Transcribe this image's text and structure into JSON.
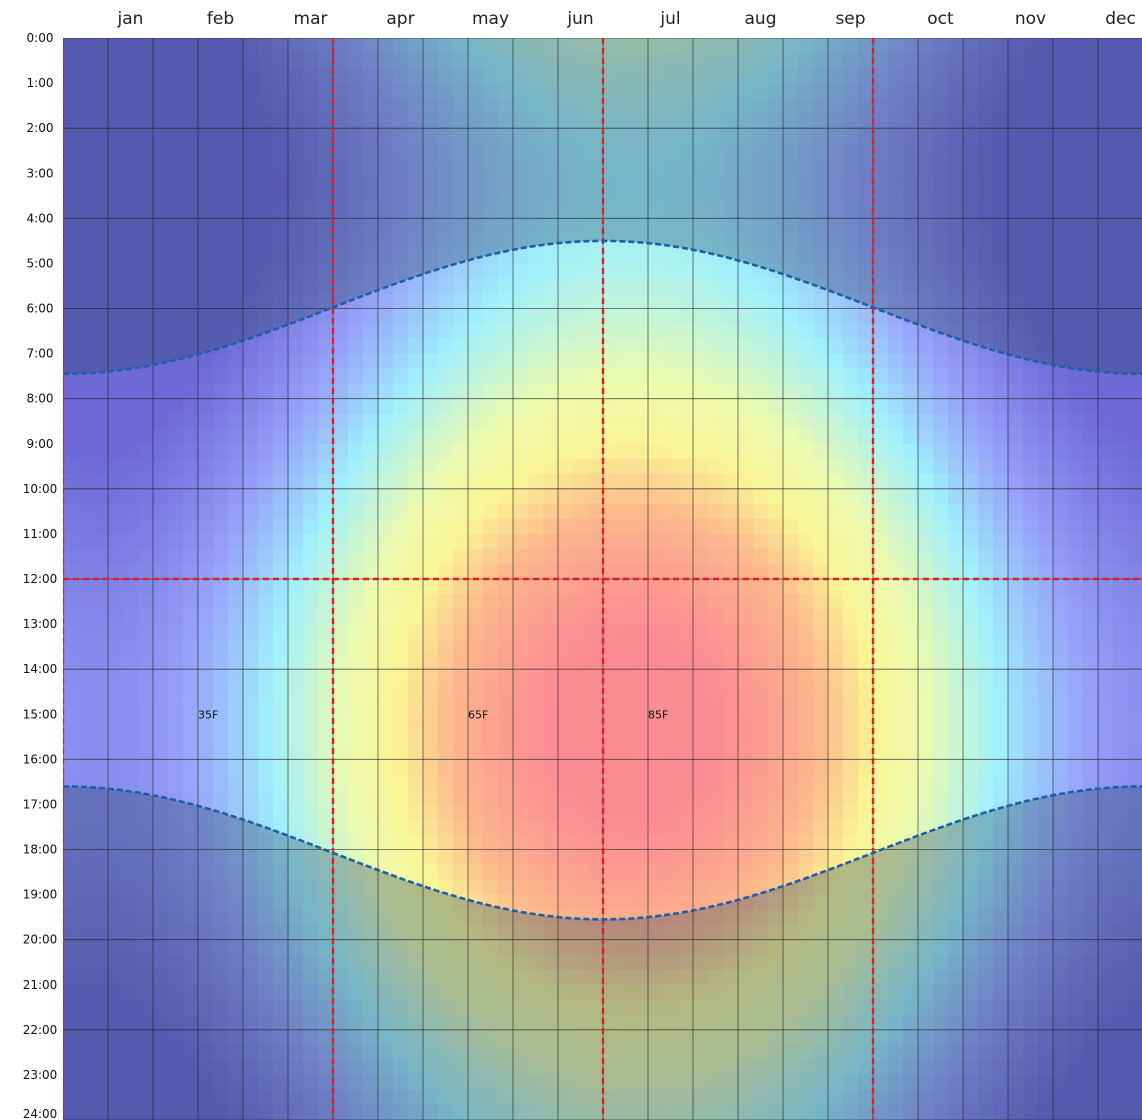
{
  "chart_data": {
    "type": "heatmap",
    "title": "",
    "xlabel": "",
    "ylabel": "",
    "x_tick_labels": [
      "jan",
      "feb",
      "mar",
      "apr",
      "may",
      "jun",
      "jul",
      "aug",
      "sep",
      "oct",
      "nov",
      "dec"
    ],
    "y_tick_labels": [
      "0:00",
      "1:00",
      "2:00",
      "3:00",
      "4:00",
      "5:00",
      "6:00",
      "7:00",
      "8:00",
      "9:00",
      "10:00",
      "11:00",
      "12:00",
      "13:00",
      "14:00",
      "15:00",
      "16:00",
      "17:00",
      "18:00",
      "19:00",
      "20:00",
      "21:00",
      "22:00",
      "23:00",
      "24:00"
    ],
    "xlim": [
      0,
      12
    ],
    "ylim": [
      0,
      24
    ],
    "grid": true,
    "temperature_annotations": [
      {
        "text": "35F",
        "month": 1.5,
        "hour": 15.0
      },
      {
        "text": "65F",
        "month": 4.5,
        "hour": 15.0
      },
      {
        "text": "85F",
        "month": 6.5,
        "hour": 15.0
      }
    ],
    "sunrise": {
      "min_hour": 4.5,
      "max_hour": 7.45,
      "min_at_month": 6.0
    },
    "sunset": {
      "min_hour": 16.6,
      "max_hour": 19.55,
      "max_at_month": 6.0
    },
    "reference_lines": {
      "months": [
        3.0,
        6.0,
        9.0
      ],
      "hours": [
        12.0
      ]
    },
    "colors": {
      "cold": "#7b7fe6",
      "cool": "#9ff3fb",
      "mild": "#f7f79a",
      "warm": "#fba57f",
      "hot": "#fc8c93",
      "night_shade": "#1e3c5a",
      "sun_curve": "#1d5fa8",
      "reference_line": "#e02020",
      "grid": "#222222"
    }
  }
}
